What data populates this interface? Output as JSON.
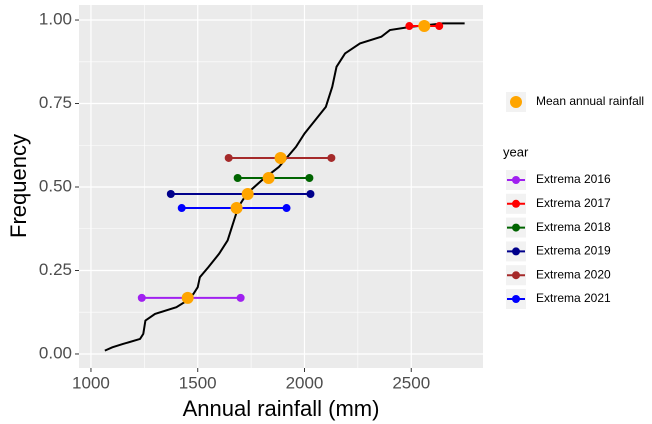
{
  "chart_data": {
    "type": "ecdf-extrema",
    "x_label": "Annual rainfall (mm)",
    "y_label": "Frequency",
    "xlim": [
      944,
      2836
    ],
    "ylim": [
      -0.042,
      1.045
    ],
    "xticks": [
      1000,
      1500,
      2000,
      2500
    ],
    "yticks": [
      {
        "value": 0,
        "label": "0.00"
      },
      {
        "value": 0.25,
        "label": "0.25"
      },
      {
        "value": 0.5,
        "label": "0.50"
      },
      {
        "value": 0.75,
        "label": "0.75"
      },
      {
        "value": 1,
        "label": "1.00"
      }
    ],
    "grid": true,
    "ecdf": {
      "color": "#000000",
      "x": [
        1065,
        1100,
        1150,
        1230,
        1245,
        1255,
        1300,
        1400,
        1450,
        1480,
        1500,
        1510,
        1550,
        1600,
        1640,
        1660,
        1680,
        1700,
        1730,
        1800,
        1880,
        1960,
        2000,
        2050,
        2100,
        2130,
        2150,
        2190,
        2260,
        2360,
        2400,
        2500,
        2650,
        2750
      ],
      "y": [
        0.01,
        0.02,
        0.03,
        0.045,
        0.06,
        0.1,
        0.12,
        0.14,
        0.16,
        0.18,
        0.2,
        0.23,
        0.26,
        0.3,
        0.34,
        0.38,
        0.42,
        0.45,
        0.48,
        0.52,
        0.56,
        0.62,
        0.66,
        0.7,
        0.74,
        0.8,
        0.86,
        0.9,
        0.93,
        0.95,
        0.97,
        0.98,
        0.99,
        0.99
      ]
    },
    "mean_name": "Mean annual rainfall",
    "mean_color": "#ffa500",
    "legend_title": "year",
    "extrema": [
      {
        "name": "Extrema 2016",
        "color": "#a020f0",
        "y": 0.168,
        "min": 1238,
        "max": 1701,
        "mean": 1453
      },
      {
        "name": "Extrema 2017",
        "color": "#ff0000",
        "y": 0.982,
        "min": 2491,
        "max": 2631,
        "mean": 2561
      },
      {
        "name": "Extrema 2018",
        "color": "#006400",
        "y": 0.527,
        "min": 1687,
        "max": 2023,
        "mean": 1832
      },
      {
        "name": "Extrema 2019",
        "color": "#00008b",
        "y": 0.479,
        "min": 1374,
        "max": 2028,
        "mean": 1734
      },
      {
        "name": "Extrema 2020",
        "color": "#a52a2a",
        "y": 0.587,
        "min": 1645,
        "max": 2126,
        "mean": 1888
      },
      {
        "name": "Extrema 2021",
        "color": "#0000ff",
        "y": 0.437,
        "min": 1425,
        "max": 1916,
        "mean": 1682
      }
    ]
  }
}
